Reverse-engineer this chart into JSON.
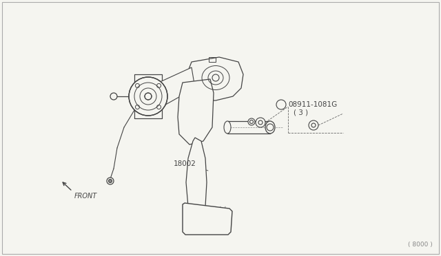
{
  "bg_color": "#f5f5f0",
  "line_color": "#444444",
  "part_label_1": "08911-1081G",
  "part_label_2": "( 3 )",
  "part_label_3": "18002",
  "bottom_ref": "( 8000 )",
  "front_label": "FRONT",
  "fig_width": 6.4,
  "fig_height": 3.72,
  "dpi": 100,
  "border_color": "#aaaaaa"
}
